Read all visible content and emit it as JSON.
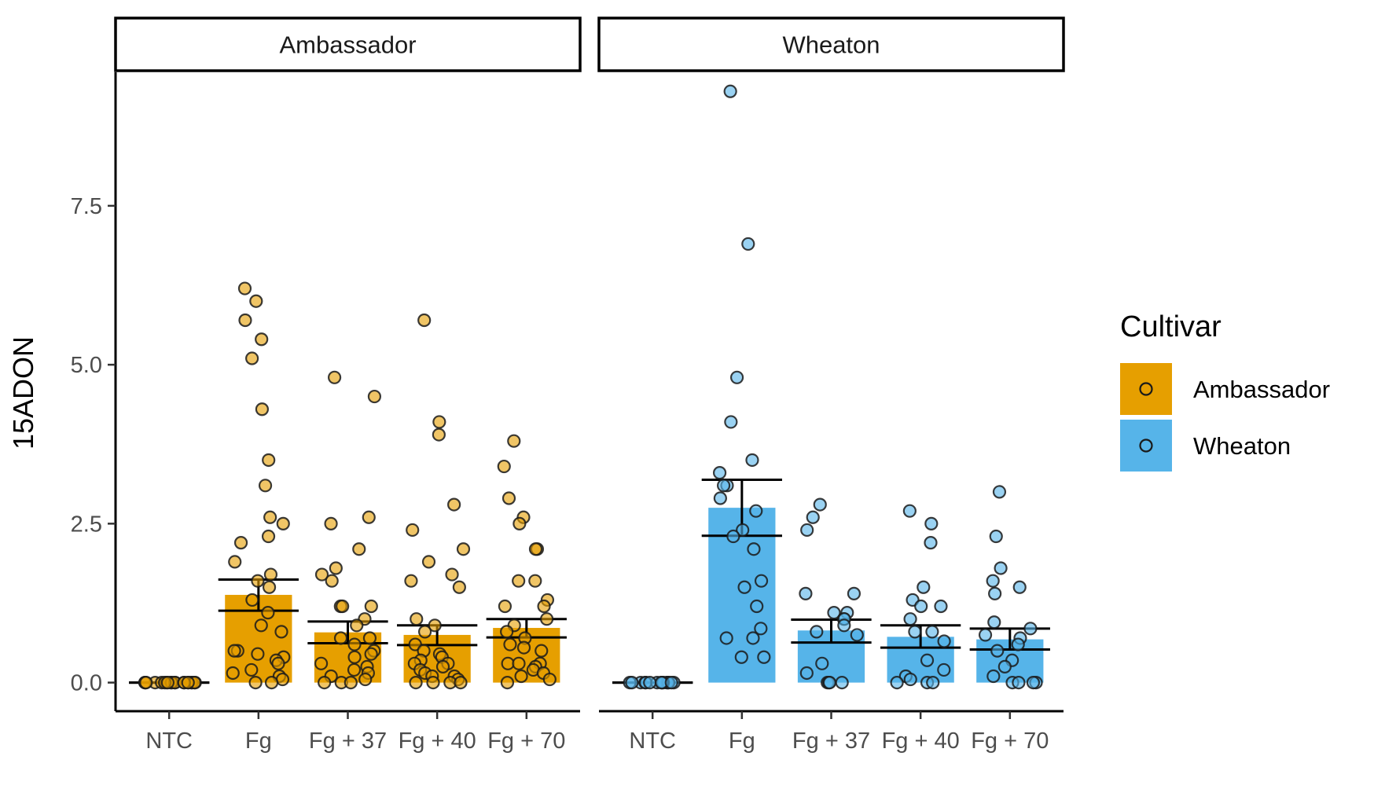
{
  "chart_data": {
    "type": "bar",
    "title": "",
    "xlabel": "",
    "ylabel": "15ADON",
    "ylim": [
      -0.45,
      9.6
    ],
    "yticks": [
      0.0,
      2.5,
      5.0,
      7.5
    ],
    "ytick_labels": [
      "0.0",
      "2.5",
      "5.0",
      "7.5"
    ],
    "categories": [
      "NTC",
      "Fg",
      "Fg + 37",
      "Fg + 40",
      "Fg + 70"
    ],
    "grid": false,
    "legend": {
      "title": "Cultivar",
      "position": "right",
      "entries": [
        {
          "name": "Ambassador",
          "color": "#E69F00"
        },
        {
          "name": "Wheaton",
          "color": "#56B4E9"
        }
      ]
    },
    "panels": [
      {
        "name": "Ambassador",
        "color": "#E69F00",
        "bars": [
          {
            "category": "NTC",
            "mean": 0.0,
            "lower": 0.0,
            "upper": 0.0,
            "points": [
              0,
              0,
              0,
              0,
              0,
              0,
              0,
              0,
              0,
              0,
              0,
              0,
              0,
              0,
              0,
              0,
              0,
              0,
              0,
              0
            ]
          },
          {
            "category": "Fg",
            "mean": 1.38,
            "lower": 1.13,
            "upper": 1.62,
            "points": [
              6.2,
              6.0,
              5.7,
              5.4,
              5.1,
              4.3,
              3.5,
              3.1,
              2.6,
              2.5,
              2.3,
              2.2,
              1.9,
              1.7,
              1.6,
              1.5,
              1.3,
              1.1,
              0.9,
              0.8,
              0.5,
              0.5,
              0.45,
              0.4,
              0.35,
              0.3,
              0.2,
              0.15,
              0.1,
              0.05,
              0.0,
              0.0
            ]
          },
          {
            "category": "Fg + 37",
            "mean": 0.79,
            "lower": 0.62,
            "upper": 0.96,
            "points": [
              4.8,
              4.5,
              2.6,
              2.5,
              2.1,
              1.8,
              1.7,
              1.6,
              1.2,
              1.2,
              1.2,
              1.0,
              0.9,
              0.7,
              0.7,
              0.6,
              0.5,
              0.45,
              0.4,
              0.3,
              0.25,
              0.2,
              0.15,
              0.1,
              0.05,
              0.0,
              0.0,
              0.0
            ]
          },
          {
            "category": "Fg + 40",
            "mean": 0.75,
            "lower": 0.59,
            "upper": 0.9,
            "points": [
              5.7,
              4.1,
              3.9,
              2.8,
              2.4,
              2.1,
              1.9,
              1.7,
              1.6,
              1.5,
              1.0,
              0.9,
              0.8,
              0.6,
              0.5,
              0.45,
              0.4,
              0.35,
              0.3,
              0.3,
              0.25,
              0.2,
              0.15,
              0.1,
              0.1,
              0.05,
              0.0,
              0.0,
              0.0,
              0.0
            ]
          },
          {
            "category": "Fg + 70",
            "mean": 0.86,
            "lower": 0.71,
            "upper": 1.0,
            "points": [
              3.8,
              3.4,
              2.9,
              2.6,
              2.5,
              2.1,
              2.1,
              1.6,
              1.6,
              1.3,
              1.2,
              1.2,
              1.0,
              0.9,
              0.8,
              0.7,
              0.6,
              0.55,
              0.5,
              0.3,
              0.3,
              0.3,
              0.25,
              0.2,
              0.15,
              0.1,
              0.05,
              0.0
            ]
          }
        ]
      },
      {
        "name": "Wheaton",
        "color": "#56B4E9",
        "bars": [
          {
            "category": "NTC",
            "mean": 0.0,
            "lower": 0.0,
            "upper": 0.0,
            "points": [
              0,
              0,
              0,
              0,
              0,
              0,
              0,
              0,
              0,
              0,
              0,
              0,
              0,
              0,
              0,
              0
            ]
          },
          {
            "category": "Fg",
            "mean": 2.75,
            "lower": 2.31,
            "upper": 3.19,
            "points": [
              9.3,
              6.9,
              4.8,
              4.1,
              3.5,
              3.3,
              3.1,
              3.1,
              2.9,
              2.7,
              2.4,
              2.3,
              2.1,
              1.6,
              1.5,
              1.2,
              0.85,
              0.7,
              0.7,
              0.4,
              0.4
            ]
          },
          {
            "category": "Fg + 37",
            "mean": 0.82,
            "lower": 0.63,
            "upper": 0.99,
            "points": [
              2.8,
              2.6,
              2.4,
              1.4,
              1.4,
              1.1,
              1.1,
              1.0,
              1.0,
              0.9,
              0.8,
              0.75,
              0.3,
              0.15,
              0.0,
              0.0,
              0.0,
              0.0
            ]
          },
          {
            "category": "Fg + 40",
            "mean": 0.72,
            "lower": 0.55,
            "upper": 0.9,
            "points": [
              2.7,
              2.5,
              2.2,
              1.5,
              1.3,
              1.2,
              1.2,
              1.0,
              0.8,
              0.8,
              0.65,
              0.35,
              0.2,
              0.1,
              0.05,
              0.0,
              0.0,
              0.0
            ]
          },
          {
            "category": "Fg + 70",
            "mean": 0.68,
            "lower": 0.52,
            "upper": 0.85,
            "points": [
              3.0,
              2.3,
              1.8,
              1.6,
              1.5,
              1.4,
              0.95,
              0.85,
              0.75,
              0.7,
              0.6,
              0.5,
              0.35,
              0.25,
              0.1,
              0.0,
              0.0,
              0.0,
              0.0
            ]
          }
        ]
      }
    ]
  }
}
